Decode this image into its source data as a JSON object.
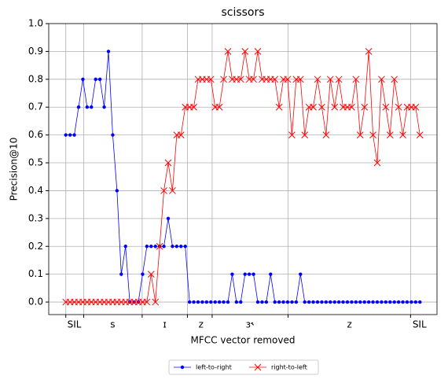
{
  "chart_data": {
    "type": "line",
    "title": "scissors",
    "x_label": "MFCC vector removed",
    "y_label": "Precision@10",
    "x": [
      0,
      1,
      2,
      3,
      4,
      5,
      6,
      7,
      8,
      9,
      10,
      11,
      12,
      13,
      14,
      15,
      16,
      17,
      18,
      19,
      20,
      21,
      22,
      23,
      24,
      25,
      26,
      27,
      28,
      29,
      30,
      31,
      32,
      33,
      34,
      35,
      36,
      37,
      38,
      39,
      40,
      41,
      42,
      43,
      44,
      45,
      46,
      47,
      48,
      49,
      50,
      51,
      52,
      53,
      54,
      55,
      56,
      57,
      58,
      59,
      60,
      61,
      62,
      63,
      64,
      65,
      66,
      67,
      68,
      69,
      70,
      71,
      72,
      73,
      74,
      75,
      76,
      77,
      78,
      79,
      80,
      81,
      82,
      83
    ],
    "series": [
      {
        "name": "left-to-right",
        "color": "#0000ff",
        "marker": "dot",
        "values": [
          0.6,
          0.6,
          0.6,
          0.7,
          0.8,
          0.7,
          0.7,
          0.8,
          0.8,
          0.7,
          0.9,
          0.6,
          0.4,
          0.1,
          0.2,
          0.0,
          0.0,
          0.0,
          0.1,
          0.2,
          0.2,
          0.2,
          0.2,
          0.2,
          0.3,
          0.2,
          0.2,
          0.2,
          0.2,
          0.0,
          0.0,
          0.0,
          0.0,
          0.0,
          0.0,
          0.0,
          0.0,
          0.0,
          0.0,
          0.1,
          0.0,
          0.0,
          0.1,
          0.1,
          0.1,
          0.0,
          0.0,
          0.0,
          0.1,
          0.0,
          0.0,
          0.0,
          0.0,
          0.0,
          0.0,
          0.1,
          0.0,
          0.0,
          0.0,
          0.0,
          0.0,
          0.0,
          0.0,
          0.0,
          0.0,
          0.0,
          0.0,
          0.0,
          0.0,
          0.0,
          0.0,
          0.0,
          0.0,
          0.0,
          0.0,
          0.0,
          0.0,
          0.0,
          0.0,
          0.0,
          0.0,
          0.0,
          0.0,
          0.0
        ]
      },
      {
        "name": "right-to-left",
        "color": "#ff0000",
        "marker": "x",
        "values": [
          0.0,
          0.0,
          0.0,
          0.0,
          0.0,
          0.0,
          0.0,
          0.0,
          0.0,
          0.0,
          0.0,
          0.0,
          0.0,
          0.0,
          0.0,
          0.0,
          0.0,
          0.0,
          0.0,
          0.0,
          0.1,
          0.0,
          0.2,
          0.4,
          0.5,
          0.4,
          0.6,
          0.6,
          0.7,
          0.7,
          0.7,
          0.8,
          0.8,
          0.8,
          0.8,
          0.7,
          0.7,
          0.8,
          0.9,
          0.8,
          0.8,
          0.8,
          0.9,
          0.8,
          0.8,
          0.9,
          0.8,
          0.8,
          0.8,
          0.8,
          0.7,
          0.8,
          0.8,
          0.6,
          0.8,
          0.8,
          0.6,
          0.7,
          0.7,
          0.8,
          0.7,
          0.6,
          0.8,
          0.7,
          0.8,
          0.7,
          0.7,
          0.7,
          0.8,
          0.6,
          0.7,
          0.9,
          0.6,
          0.5,
          0.8,
          0.7,
          0.6,
          0.8,
          0.7,
          0.6,
          0.7,
          0.7,
          0.7,
          0.6
        ]
      }
    ],
    "xlim": [
      -4,
      87
    ],
    "xticks": [
      {
        "value": 2.0,
        "label": "SIL"
      },
      {
        "value": 11.0,
        "label": "s"
      },
      {
        "value": 23.2,
        "label": "ɪ"
      },
      {
        "value": 31.7,
        "label": "z"
      },
      {
        "value": 43.1,
        "label": "ɜ˞"
      },
      {
        "value": 66.5,
        "label": "z"
      },
      {
        "value": 82.9,
        "label": "SIL"
      }
    ],
    "xgrid": [
      0,
      4.2,
      17.9,
      28.5,
      34.3,
      52.1,
      80.8
    ],
    "ylim": [
      -0.045,
      1.0
    ],
    "yticks": [
      {
        "value": 0.0,
        "label": "0.0"
      },
      {
        "value": 0.1,
        "label": "0.1"
      },
      {
        "value": 0.2,
        "label": "0.2"
      },
      {
        "value": 0.3,
        "label": "0.3"
      },
      {
        "value": 0.4,
        "label": "0.4"
      },
      {
        "value": 0.5,
        "label": "0.5"
      },
      {
        "value": 0.6,
        "label": "0.6"
      },
      {
        "value": 0.7,
        "label": "0.7"
      },
      {
        "value": 0.8,
        "label": "0.8"
      },
      {
        "value": 0.9,
        "label": "0.9"
      },
      {
        "value": 1.0,
        "label": "1.0"
      }
    ],
    "grid": true,
    "legend": "bottom"
  }
}
